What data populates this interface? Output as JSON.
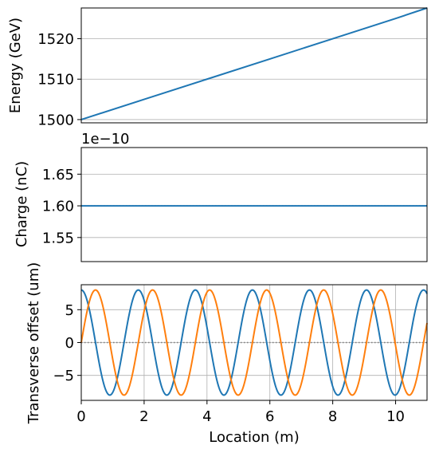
{
  "chart_data": [
    {
      "type": "line",
      "title": "",
      "xlabel": "",
      "ylabel": "Energy (GeV)",
      "xlim": [
        0,
        11
      ],
      "ylim": [
        1499.2,
        1527.6
      ],
      "yticks": [
        1500,
        1510,
        1520
      ],
      "ytick_labels": [
        "1500",
        "1510",
        "1520"
      ],
      "grid": true,
      "series": [
        {
          "color": "#1f77b4",
          "x": [
            0,
            2,
            4,
            6,
            8,
            10,
            11
          ],
          "y": [
            1500,
            1505,
            1510,
            1515,
            1520,
            1525,
            1527.6
          ]
        }
      ]
    },
    {
      "type": "line",
      "title": "",
      "xlabel": "",
      "ylabel": "Charge (nC)",
      "offset_text": "1e−10",
      "xlim": [
        0,
        11
      ],
      "ylim": [
        1.512,
        1.692
      ],
      "yticks": [
        1.55,
        1.6,
        1.65
      ],
      "ytick_labels": [
        "1.55",
        "1.60",
        "1.65"
      ],
      "grid": true,
      "series": [
        {
          "color": "#1f77b4",
          "x": [
            0,
            11
          ],
          "y": [
            1.6,
            1.6
          ]
        }
      ],
      "reference_line": {
        "y": 1.6,
        "style": "dotted",
        "color": "#7f7f7f"
      }
    },
    {
      "type": "line",
      "title": "",
      "xlabel": "Location (m)",
      "ylabel": "Transverse offset (um)",
      "xlim": [
        0,
        11
      ],
      "ylim": [
        -8.8,
        8.8
      ],
      "xticks": [
        0,
        2,
        4,
        6,
        8,
        10
      ],
      "xtick_labels": [
        "0",
        "2",
        "4",
        "6",
        "8",
        "10"
      ],
      "yticks": [
        -5,
        0,
        5
      ],
      "ytick_labels": [
        "−5",
        "0",
        "5"
      ],
      "grid": true,
      "series": [
        {
          "color": "#1f77b4",
          "function": "cos",
          "amplitude": 8,
          "period": 1.815,
          "phase": 0
        },
        {
          "color": "#ff7f0e",
          "function": "sin",
          "amplitude": 8,
          "period": 1.815,
          "phase": 0
        }
      ],
      "reference_line": {
        "y": 0,
        "style": "dotted",
        "color": "#7f7f7f"
      }
    }
  ]
}
